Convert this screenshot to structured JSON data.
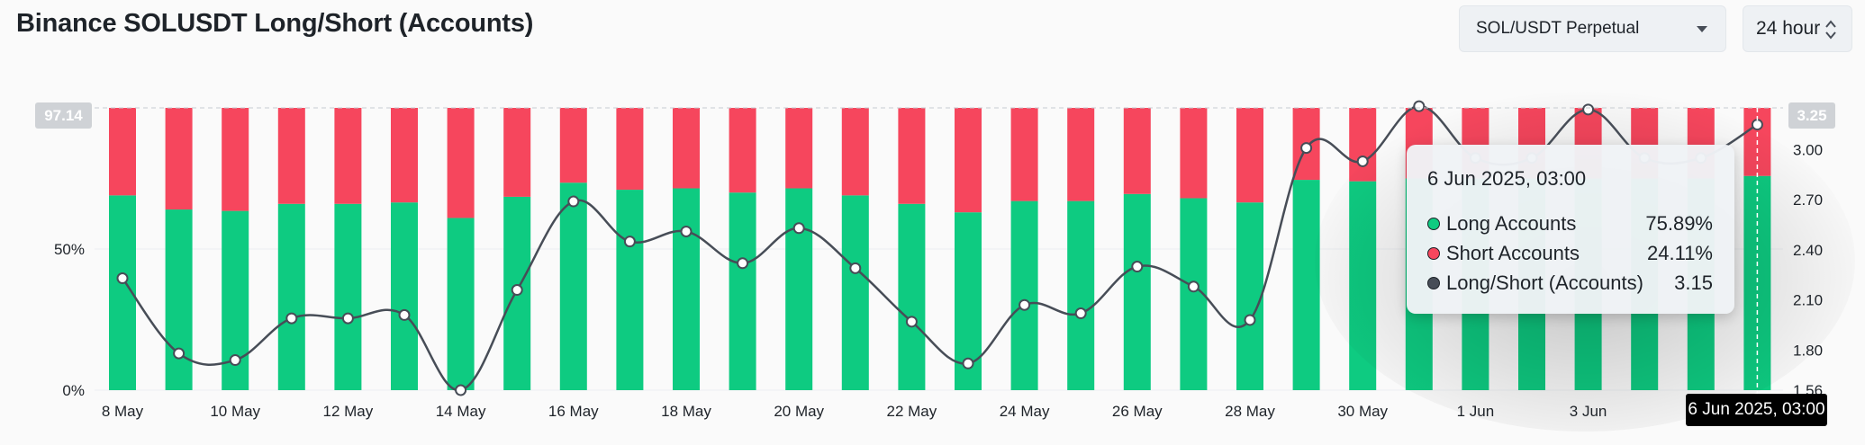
{
  "header": {
    "title": "Binance SOLUSDT Long/Short (Accounts)",
    "symbol_select": "SOL/USDT Perpetual",
    "period_select": "24 hour"
  },
  "colors": {
    "long": "#0ecb81",
    "short": "#f6465d",
    "ratio_line": "#474d57",
    "tooltip_bg": "#f0f3f6",
    "badge_bg": "#cfd2d6"
  },
  "tooltip": {
    "title": "6 Jun 2025, 03:00",
    "rows": [
      {
        "label": "Long Accounts",
        "value": "75.89%"
      },
      {
        "label": "Short Accounts",
        "value": "24.11%"
      },
      {
        "label": "Long/Short (Accounts)",
        "value": "3.15"
      }
    ]
  },
  "crosshair": {
    "time_label": "6 Jun 2025, 03:00",
    "left_value": "97.14",
    "right_value": "3.25"
  },
  "chart_data": {
    "type": "bar",
    "stacked": true,
    "title": "Binance SOLUSDT Long/Short (Accounts)",
    "categories": [
      "8 May",
      "9 May",
      "10 May",
      "11 May",
      "12 May",
      "13 May",
      "14 May",
      "15 May",
      "16 May",
      "17 May",
      "18 May",
      "19 May",
      "20 May",
      "21 May",
      "22 May",
      "23 May",
      "24 May",
      "25 May",
      "26 May",
      "27 May",
      "28 May",
      "29 May",
      "30 May",
      "31 May",
      "1 Jun",
      "2 Jun",
      "3 Jun",
      "4 Jun",
      "5 Jun",
      "6 Jun"
    ],
    "x_tick_labels": [
      "8 May",
      "10 May",
      "12 May",
      "14 May",
      "16 May",
      "18 May",
      "20 May",
      "22 May",
      "24 May",
      "26 May",
      "28 May",
      "30 May",
      "1 Jun",
      "3 Jun"
    ],
    "series": [
      {
        "name": "Long Accounts",
        "axis": "left",
        "values": [
          69,
          64,
          63.5,
          66,
          66,
          66.5,
          61,
          68.5,
          73.5,
          71,
          71.5,
          70,
          71.5,
          69,
          66,
          63,
          67,
          67,
          69.5,
          68,
          66.5,
          74.5,
          74,
          75,
          75,
          75,
          75,
          75,
          75,
          75.89
        ]
      },
      {
        "name": "Short Accounts",
        "axis": "left",
        "values": [
          31,
          36,
          36.5,
          34,
          34,
          33.5,
          39,
          31.5,
          26.5,
          29,
          28.5,
          30,
          28.5,
          31,
          34,
          37,
          33,
          33,
          30.5,
          32,
          33.5,
          25.5,
          26,
          25,
          25,
          25,
          25,
          25,
          25,
          24.11
        ]
      },
      {
        "name": "Long/Short (Accounts)",
        "axis": "right",
        "type": "line",
        "values": [
          2.23,
          1.78,
          1.74,
          1.99,
          1.99,
          2.01,
          1.56,
          2.16,
          2.69,
          2.45,
          2.51,
          2.32,
          2.53,
          2.29,
          1.97,
          1.72,
          2.07,
          2.02,
          2.3,
          2.18,
          1.98,
          3.01,
          2.93,
          3.26,
          2.95,
          2.95,
          3.24,
          2.95,
          2.95,
          3.15
        ]
      }
    ],
    "y_left": {
      "ticks": [
        "0%",
        "50%"
      ],
      "range": [
        0,
        100
      ]
    },
    "y_right": {
      "ticks": [
        "1.56",
        "1.80",
        "2.10",
        "2.40",
        "2.70",
        "3.00"
      ],
      "range": [
        1.56,
        3.25
      ]
    },
    "grid": true,
    "legend": "none"
  }
}
